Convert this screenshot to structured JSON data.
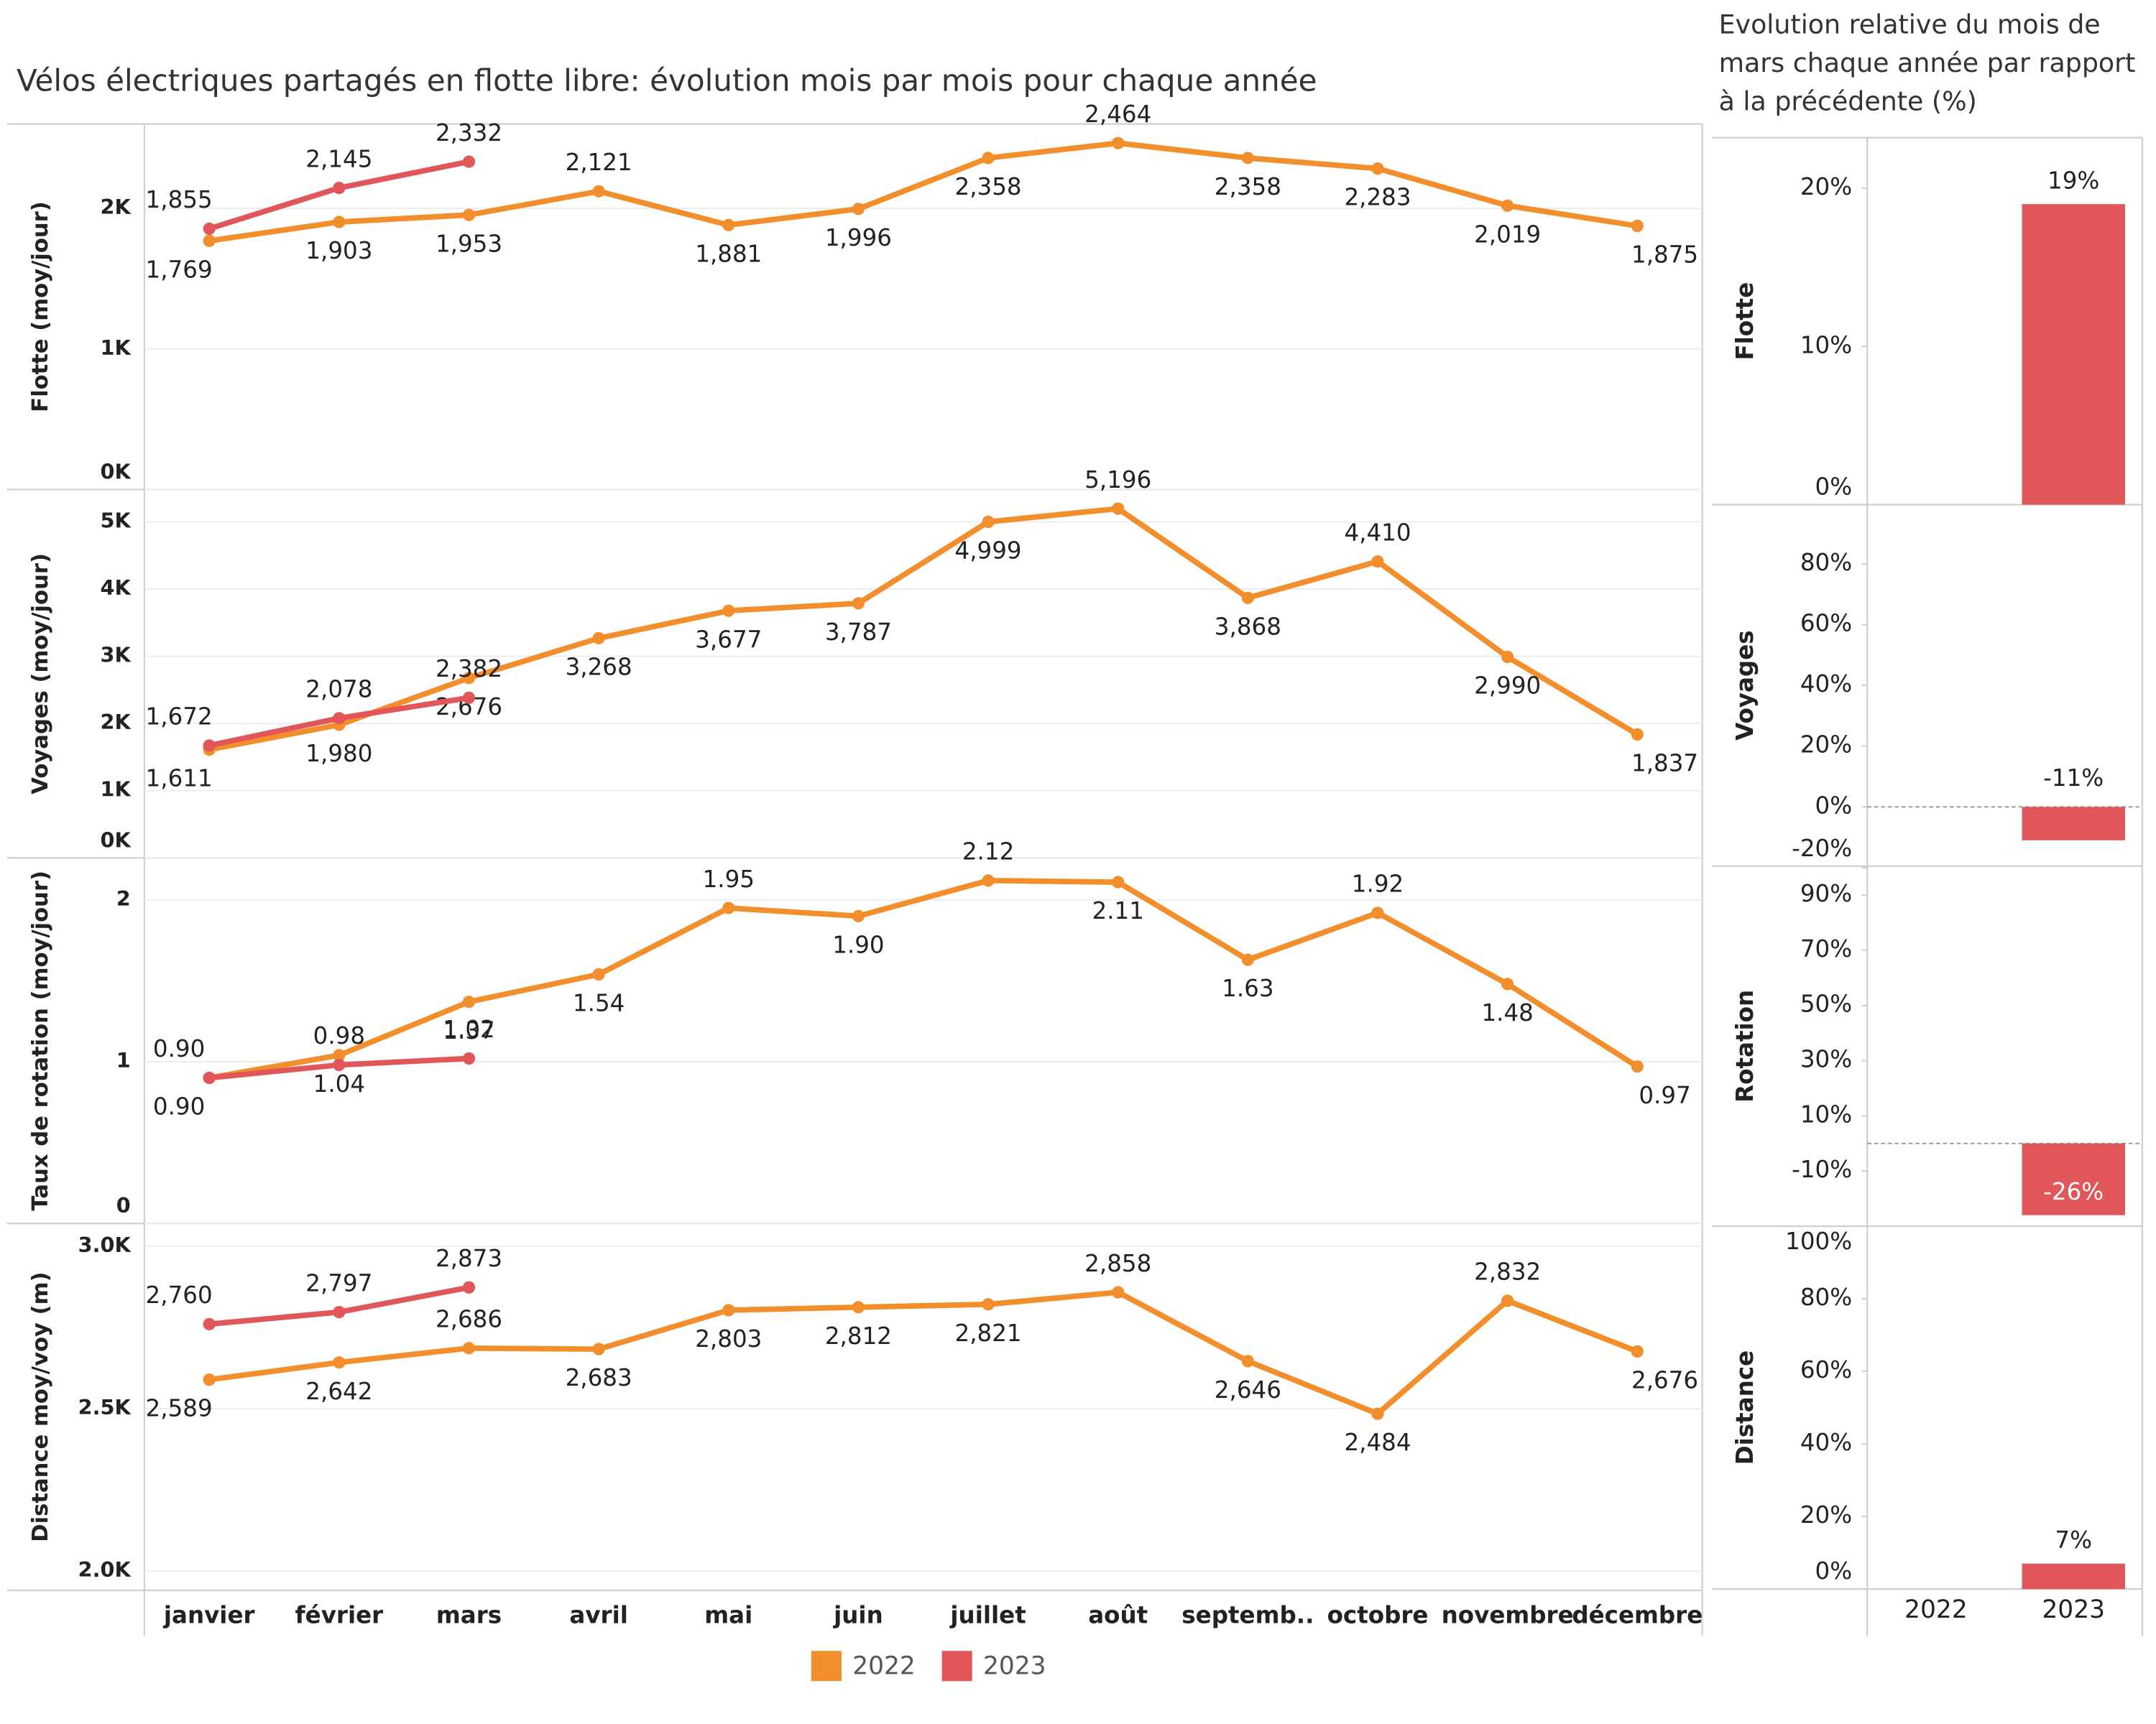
{
  "title": "Vélos électriques partagés en flotte libre: évolution mois par mois pour chaque année",
  "subtitle": "Evolution relative du mois de mars chaque année par rapport à la précédente (%)",
  "chart_data": [
    {
      "type": "line",
      "ylabel": "Flotte (moy/jour)",
      "ylim": [
        0,
        2600
      ],
      "grid": true,
      "yticks": [
        {
          "value": 0,
          "label": "0K"
        },
        {
          "value": 1000,
          "label": "1K"
        },
        {
          "value": 2000,
          "label": "2K"
        }
      ],
      "series": [
        {
          "name": "2022",
          "color": "#f28e2b",
          "values": [
            1769,
            1903,
            1953,
            2121,
            1881,
            1996,
            2358,
            2464,
            2358,
            2283,
            2019,
            1875
          ],
          "value_labels": [
            "1,769",
            "1,903",
            "1,953",
            "2,121",
            "1,881",
            "1,996",
            "2,358",
            "2,464",
            "2,358",
            "2,283",
            "2,019",
            "1,875"
          ]
        },
        {
          "name": "2023",
          "color": "#e15759",
          "values": [
            1855,
            2145,
            2332,
            null,
            null,
            null,
            null,
            null,
            null,
            null,
            null,
            null
          ],
          "value_labels": [
            "1,855",
            "2,145",
            "2,332",
            null,
            null,
            null,
            null,
            null,
            null,
            null,
            null,
            null
          ]
        }
      ]
    },
    {
      "type": "line",
      "ylabel": "Voyages (moy/jour)",
      "ylim": [
        0,
        5480
      ],
      "grid": true,
      "yticks": [
        {
          "value": 0,
          "label": "0K"
        },
        {
          "value": 1000,
          "label": "1K"
        },
        {
          "value": 2000,
          "label": "2K"
        },
        {
          "value": 3000,
          "label": "3K"
        },
        {
          "value": 4000,
          "label": "4K"
        },
        {
          "value": 5000,
          "label": "5K"
        }
      ],
      "series": [
        {
          "color": "#f28e2b",
          "values": [
            1611,
            1980,
            2676,
            3268,
            3677,
            3787,
            4999,
            5196,
            3868,
            4410,
            2990,
            1837
          ],
          "value_labels": [
            "1,611",
            "1,980",
            "2,676",
            "3,268",
            "3,677",
            "3,787",
            "4,999",
            "5,196",
            "3,868",
            "4,410",
            "2,990",
            "1,837"
          ]
        },
        {
          "color": "#e15759",
          "values": [
            1672,
            2078,
            2382,
            null,
            null,
            null,
            null,
            null,
            null,
            null,
            null,
            null
          ],
          "value_labels": [
            "1,672",
            "2,078",
            "2,382",
            null,
            null,
            null,
            null,
            null,
            null,
            null,
            null,
            null
          ]
        }
      ]
    },
    {
      "type": "line",
      "ylabel": "Taux de rotation (moy/jour)",
      "ylim": [
        0,
        2.26
      ],
      "grid": true,
      "yticks": [
        0,
        1,
        2
      ],
      "series": [
        {
          "color": "#f28e2b",
          "values": [
            0.9,
            1.04,
            1.37,
            1.54,
            1.95,
            1.9,
            2.12,
            2.11,
            1.63,
            1.92,
            1.48,
            0.97
          ],
          "value_labels": [
            "0.90",
            "1.04",
            "1.37",
            "1.54",
            "1.95",
            "1.90",
            "2.12",
            "2.11",
            "1.63",
            "1.92",
            "1.48",
            "0.97"
          ]
        },
        {
          "color": "#e15759",
          "values": [
            0.9,
            0.98,
            1.02,
            null,
            null,
            null,
            null,
            null,
            null,
            null,
            null,
            null
          ],
          "value_labels": [
            "0.90",
            "0.98",
            "1.02",
            null,
            null,
            null,
            null,
            null,
            null,
            null,
            null,
            null
          ]
        }
      ]
    },
    {
      "type": "line",
      "ylabel": "Distance moy/voy (m)",
      "ylim": [
        1940,
        3070
      ],
      "grid": true,
      "categories": [
        "janvier",
        "février",
        "mars",
        "avril",
        "mai",
        "juin",
        "juillet",
        "août",
        "septemb..",
        "octobre",
        "novembre",
        "décembre"
      ],
      "yticks": [
        {
          "value": 2000,
          "label": "2.0K"
        },
        {
          "value": 2500,
          "label": "2.5K"
        },
        {
          "value": 3000,
          "label": "3.0K"
        }
      ],
      "series": [
        {
          "color": "#f28e2b",
          "values": [
            2589,
            2642,
            2686,
            2683,
            2803,
            2812,
            2821,
            2858,
            2646,
            2484,
            2832,
            2676
          ],
          "value_labels": [
            "2,589",
            "2,642",
            "2,686",
            "2,683",
            "2,803",
            "2,812",
            "2,821",
            "2,858",
            "2,646",
            "2,484",
            "2,832",
            "2,676"
          ]
        },
        {
          "color": "#e15759",
          "values": [
            2760,
            2797,
            2873,
            null,
            null,
            null,
            null,
            null,
            null,
            null,
            null,
            null
          ],
          "value_labels": [
            "2,760",
            "2,797",
            "2,873",
            null,
            null,
            null,
            null,
            null,
            null,
            null,
            null,
            null
          ]
        }
      ]
    },
    {
      "type": "bar",
      "ylabel": "Flotte",
      "color": "#e15759",
      "ylim": [
        0,
        23.2
      ],
      "yticks": [
        {
          "value": 0,
          "label": "0%"
        },
        {
          "value": 10,
          "label": "10%"
        },
        {
          "value": 20,
          "label": "20%"
        }
      ],
      "values": [
        null,
        19
      ],
      "value_labels": [
        null,
        "19%"
      ]
    },
    {
      "type": "bar",
      "ylabel": "Voyages",
      "color": "#e15759",
      "ylim": [
        -19.5,
        99.5
      ],
      "yticks": [
        {
          "value": -20,
          "label": "-20%"
        },
        {
          "value": 0,
          "label": "0%"
        },
        {
          "value": 20,
          "label": "20%"
        },
        {
          "value": 40,
          "label": "40%"
        },
        {
          "value": 60,
          "label": "60%"
        },
        {
          "value": 80,
          "label": "80%"
        }
      ],
      "values": [
        null,
        -11
      ],
      "value_labels": [
        null,
        "-11%"
      ]
    },
    {
      "type": "bar",
      "ylabel": "Rotation",
      "color": "#e15759",
      "ylim": [
        -30,
        100.5
      ],
      "yticks": [
        {
          "value": -10,
          "label": "-10%"
        },
        {
          "value": 10,
          "label": "10%"
        },
        {
          "value": 30,
          "label": "30%"
        },
        {
          "value": 50,
          "label": "50%"
        },
        {
          "value": 70,
          "label": "70%"
        },
        {
          "value": 90,
          "label": "90%"
        }
      ],
      "values": [
        null,
        -26
      ],
      "value_labels": [
        null,
        "-26%"
      ]
    },
    {
      "type": "bar",
      "ylabel": "Distance",
      "color": "#e15759",
      "ylim": [
        0,
        100
      ],
      "categories": [
        "2022",
        "2023"
      ],
      "yticks": [
        {
          "value": 0,
          "label": "0%"
        },
        {
          "value": 20,
          "label": "20%"
        },
        {
          "value": 40,
          "label": "40%"
        },
        {
          "value": 60,
          "label": "60%"
        },
        {
          "value": 80,
          "label": "80%"
        },
        {
          "value": 100,
          "label": "100%"
        }
      ],
      "values": [
        null,
        7
      ],
      "value_labels": [
        null,
        "7%"
      ]
    }
  ]
}
